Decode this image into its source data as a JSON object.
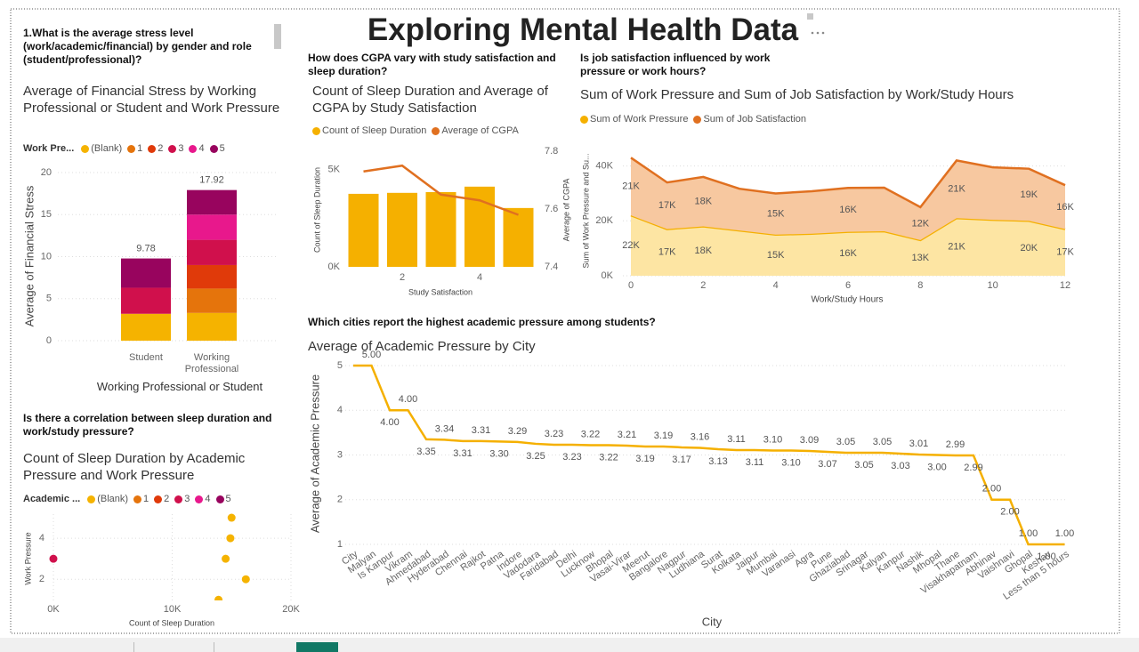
{
  "title": "Exploring Mental Health Data",
  "chart_data": [
    {
      "type": "stacked_bar",
      "question": "1.What is the average stress level (work/academic/financial) by gender and role (student/professional)?",
      "title": "Average of Financial Stress by Working Professional or Student and Work Pressure",
      "legend_title": "Work Pre...",
      "categories": [
        "Student",
        "Working Professional"
      ],
      "series": [
        {
          "name": "(Blank)",
          "color": "#f5b300",
          "values": [
            3.2,
            3.3
          ]
        },
        {
          "name": "1",
          "color": "#e5740c",
          "values": [
            null,
            2.9
          ]
        },
        {
          "name": "2",
          "color": "#e03a0a",
          "values": [
            null,
            2.8
          ]
        },
        {
          "name": "3",
          "color": "#d0104c",
          "values": [
            3.1,
            3.0
          ]
        },
        {
          "name": "4",
          "color": "#e8188c",
          "values": [
            null,
            3.0
          ]
        },
        {
          "name": "5",
          "color": "#98045e",
          "values": [
            3.48,
            2.92
          ]
        }
      ],
      "totals": [
        9.78,
        17.92
      ],
      "ylim": [
        0,
        20
      ],
      "yticks": [
        0,
        5,
        10,
        15,
        20
      ],
      "xlabel": "Working Professional or Student",
      "ylabel": "Average of Financial Stress",
      "grid": true
    },
    {
      "type": "bar_line",
      "question": "How does CGPA vary with study satisfaction and sleep duration?",
      "title": "Count of Sleep Duration and Average of CGPA by Study Satisfaction",
      "x": [
        1,
        2,
        3,
        4,
        5
      ],
      "series": [
        {
          "name": "Count of Sleep Duration",
          "color": "#f5b000",
          "values": [
            3760,
            3810,
            3850,
            4130,
            3030
          ]
        },
        {
          "name": "Average of CGPA",
          "color": "#e07020",
          "axis": "y2",
          "values": [
            7.73,
            7.75,
            7.65,
            7.63,
            7.58
          ]
        }
      ],
      "xlim": [
        0.5,
        5.5
      ],
      "xticks": [
        2,
        4
      ],
      "ylim": [
        0,
        6000
      ],
      "yticks": [
        {
          "value": 0,
          "label": "0K"
        },
        {
          "value": 5000,
          "label": "5K"
        }
      ],
      "y2lim": [
        7.4,
        7.8
      ],
      "y2ticks": [
        7.4,
        7.6,
        7.8
      ],
      "xlabel": "Study Satisfaction",
      "ylabel": "Count of Sleep Duration",
      "y2label": "Average of CGPA",
      "grid": false
    },
    {
      "type": "stacked_area",
      "question": "Is job satisfaction influenced by work pressure or work hours?",
      "title": "Sum of Work Pressure and Sum of Job Satisfaction by Work/Study Hours",
      "x": [
        0,
        1,
        2,
        3,
        4,
        5,
        6,
        7,
        8,
        9,
        10,
        11,
        12
      ],
      "series": [
        {
          "name": "Sum of Work Pressure",
          "color": "#f5b000",
          "fill": "#fde5a3",
          "values": [
            22000,
            17000,
            18000,
            16500,
            15000,
            15300,
            16000,
            16200,
            13000,
            21000,
            20400,
            20000,
            17000
          ],
          "value_labels": [
            "22K",
            "17K",
            "18K",
            null,
            "15K",
            null,
            "16K",
            null,
            "13K",
            "21K",
            null,
            "20K",
            "17K"
          ]
        },
        {
          "name": "Sum of Job Satisfaction",
          "color": "#e07020",
          "fill": "#f7c8a0",
          "values": [
            21000,
            17000,
            18000,
            15200,
            15000,
            15500,
            16000,
            15900,
            12000,
            21000,
            19100,
            19000,
            16000
          ],
          "value_labels": [
            "21K",
            "17K",
            "18K",
            null,
            "15K",
            null,
            "16K",
            null,
            "12K",
            "21K",
            null,
            "19K",
            "16K"
          ]
        }
      ],
      "xlim": [
        0,
        12
      ],
      "xticks": [
        0,
        2,
        4,
        6,
        8,
        10,
        12
      ],
      "ylim": [
        0,
        47000
      ],
      "yticks": [
        {
          "value": 0,
          "label": "0K"
        },
        {
          "value": 20000,
          "label": "20K"
        },
        {
          "value": 40000,
          "label": "40K"
        }
      ],
      "xlabel": "Work/Study Hours",
      "ylabel": "Sum of Work Pressure and Su...",
      "grid": true
    },
    {
      "type": "scatter",
      "question": "Is there a correlation between sleep duration and work/study pressure?",
      "title": "Count of Sleep Duration by Academic Pressure and Work Pressure",
      "legend_title": "Academic ...",
      "series": [
        {
          "name": "(Blank)",
          "color": "#f5b300",
          "x": [
            15000,
            14900,
            14500,
            16200,
            13900
          ],
          "y": [
            5,
            4,
            3,
            2,
            1
          ]
        },
        {
          "name": "1",
          "color": "#e5740c",
          "x": [],
          "y": []
        },
        {
          "name": "2",
          "color": "#e03a0a",
          "x": [],
          "y": []
        },
        {
          "name": "3",
          "color": "#d0104c",
          "x": [
            0
          ],
          "y": [
            3
          ]
        },
        {
          "name": "4",
          "color": "#e8188c",
          "x": [],
          "y": []
        },
        {
          "name": "5",
          "color": "#98045e",
          "x": [],
          "y": []
        }
      ],
      "xlim": [
        0,
        20000
      ],
      "xticks": [
        {
          "value": 0,
          "label": "0K"
        },
        {
          "value": 10000,
          "label": "10K"
        },
        {
          "value": 20000,
          "label": "20K"
        }
      ],
      "ylim": [
        1,
        5.15
      ],
      "yticks": [
        2,
        4
      ],
      "xlabel": "Count of Sleep Duration",
      "ylabel": "Work Pressure",
      "grid": true
    },
    {
      "type": "line",
      "question": "Which cities report the highest academic pressure among students?",
      "title": "Average of Academic Pressure by City",
      "categories": [
        "City",
        "Malyan",
        "Is Kanpur",
        "Vikram",
        "Ahmedabad",
        "Hyderabad",
        "Chennai",
        "Rajkot",
        "Patna",
        "Indore",
        "Vadodara",
        "Faridabad",
        "Delhi",
        "Lucknow",
        "Bhopal",
        "Vasai-Virar",
        "Meerut",
        "Bangalore",
        "Nagpur",
        "Ludhiana",
        "Surat",
        "Kolkata",
        "Jaipur",
        "Mumbai",
        "Varanasi",
        "Agra",
        "Pune",
        "Ghaziabad",
        "Srinagar",
        "Kalyan",
        "Kanpur",
        "Nashik",
        "Mhopal",
        "Thane",
        "Visakhapatnam",
        "Abhinav",
        "Vaishnavi",
        "Ghopal",
        "Keshav",
        "Less than 5 hours"
      ],
      "values": [
        5,
        5,
        4,
        4,
        3.35,
        3.34,
        3.31,
        3.31,
        3.3,
        3.29,
        3.25,
        3.23,
        3.23,
        3.22,
        3.22,
        3.21,
        3.19,
        3.19,
        3.17,
        3.16,
        3.13,
        3.11,
        3.11,
        3.1,
        3.1,
        3.09,
        3.07,
        3.05,
        3.05,
        3.05,
        3.03,
        3.01,
        3,
        2.99,
        2.99,
        2,
        2,
        1,
        1,
        1
      ],
      "value_labels": [
        null,
        "5.00",
        "4.00",
        "4.00",
        "3.35",
        "3.34",
        "3.31",
        "3.31",
        "3.30",
        "3.29",
        "3.25",
        "3.23",
        "3.23",
        "3.22",
        "3.22",
        "3.21",
        "3.19",
        "3.19",
        "3.17",
        "3.16",
        "3.13",
        "3.11",
        "3.11",
        "3.10",
        "3.10",
        "3.09",
        "3.07",
        "3.05",
        "3.05",
        "3.05",
        "3.03",
        "3.01",
        "3.00",
        "2.99",
        "2.99",
        "2.00",
        "2.00",
        "1.00",
        "1.00",
        "1.00"
      ],
      "color": "#f5b000",
      "ylim": [
        1,
        5
      ],
      "yticks": [
        1,
        2,
        3,
        4,
        5
      ],
      "xlabel": "City",
      "ylabel": "Average of Academic Pressure",
      "grid": true
    }
  ]
}
